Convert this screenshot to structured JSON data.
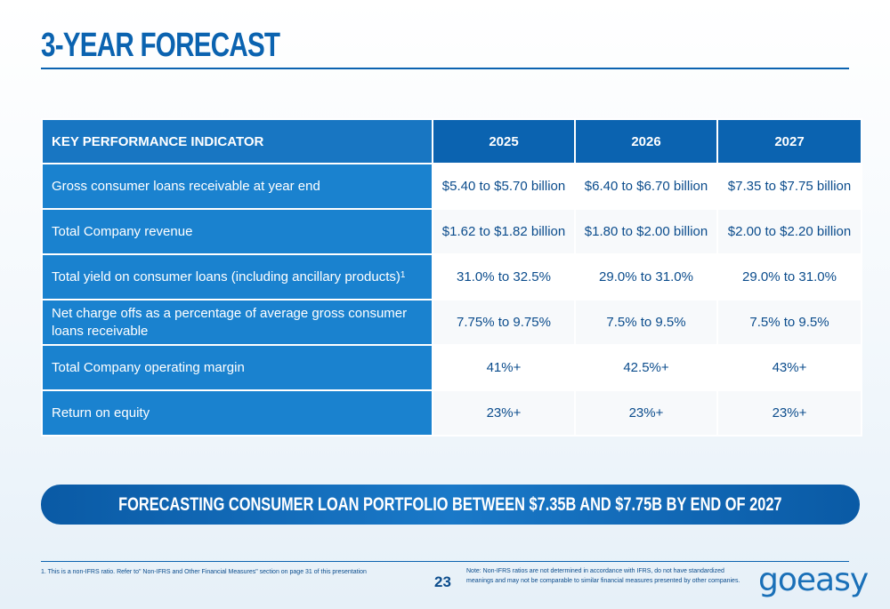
{
  "page": {
    "title": "3-YEAR FORECAST",
    "page_number": "23"
  },
  "table": {
    "headers": [
      "KEY PERFORMANCE INDICATOR",
      "2025",
      "2026",
      "2027"
    ],
    "rows": [
      {
        "label": "Gross consumer loans receivable at year end",
        "sup": "",
        "values": [
          "$5.40 to $5.70 billion",
          "$6.40 to $6.70 billion",
          "$7.35 to $7.75 billion"
        ]
      },
      {
        "label": "Total Company revenue",
        "sup": "",
        "values": [
          "$1.62 to $1.82 billion",
          "$1.80 to $2.00 billion",
          "$2.00 to $2.20 billion"
        ]
      },
      {
        "label": "Total yield on consumer loans (including ancillary products)",
        "sup": "1",
        "values": [
          "31.0% to 32.5%",
          "29.0% to 31.0%",
          "29.0% to 31.0%"
        ]
      },
      {
        "label": "Net charge offs as a percentage of average gross consumer loans receivable",
        "sup": "",
        "values": [
          "7.75% to 9.75%",
          "7.5% to 9.5%",
          "7.5% to 9.5%"
        ]
      },
      {
        "label": "Total Company operating margin",
        "sup": "",
        "values": [
          "41%+",
          "42.5%+",
          "43%+"
        ]
      },
      {
        "label": "Return on equity",
        "sup": "",
        "values": [
          "23%+",
          "23%+",
          "23%+"
        ]
      }
    ]
  },
  "banner": {
    "text": "FORECASTING CONSUMER LOAN PORTFOLIO BETWEEN $7.35B AND $7.75B BY END OF 2027"
  },
  "footer": {
    "footnote": "1.   This is a non-IFRS ratio. Refer to\" Non-IFRS and Other Financial Measures\" section on page 31 of this presentation",
    "note": "Note: Non-IFRS ratios are not determined in accordance with IFRS, do not have standardized meanings and may not be comparable to similar financial measures presented by other companies.",
    "logo_text": "goeasy"
  },
  "colors": {
    "brand_blue": "#0b63b0",
    "label_blue": "#1a82cf",
    "text_blue": "#0b4c8c"
  }
}
